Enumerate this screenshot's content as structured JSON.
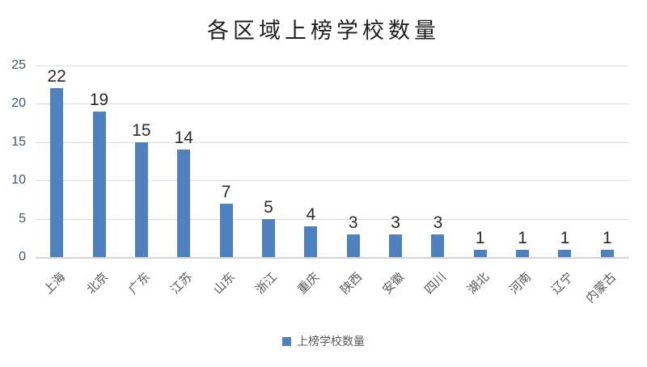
{
  "chart_data": {
    "type": "bar",
    "title": "各区域上榜学校数量",
    "categories": [
      "上海",
      "北京",
      "广东",
      "江苏",
      "山东",
      "浙江",
      "重庆",
      "陕西",
      "安徽",
      "四川",
      "湖北",
      "河南",
      "辽宁",
      "内蒙古"
    ],
    "series": [
      {
        "name": "上榜学校数量",
        "values": [
          22,
          19,
          15,
          14,
          7,
          5,
          4,
          3,
          3,
          3,
          1,
          1,
          1,
          1
        ]
      }
    ],
    "xlabel": "",
    "ylabel": "",
    "ylim": [
      0,
      25
    ],
    "yticks": [
      0,
      5,
      10,
      15,
      20,
      25
    ],
    "grid": "horizontal",
    "data_labels": true,
    "legend_position": "bottom",
    "colors": {
      "bar": "#4E81BD",
      "gridline": "#DCDCDC",
      "axis_baseline": "#D4D4D4",
      "y_tick_text": "#44546A",
      "x_tick_text": "#595959",
      "data_label_text": "#2B2B2B",
      "title_text": "#1F1F1F",
      "legend_text": "#595959",
      "background": "#FFFFFF"
    }
  }
}
